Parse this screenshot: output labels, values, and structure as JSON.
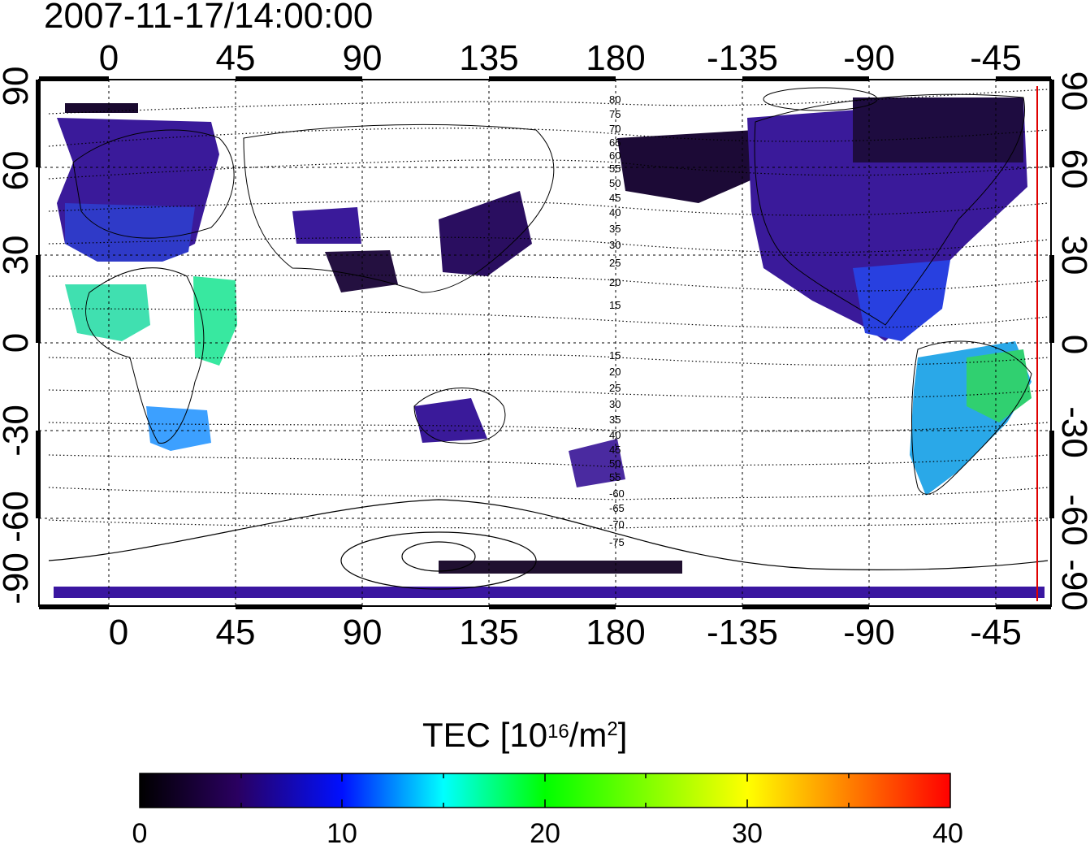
{
  "title": "2007-11-17/14:00:00",
  "map": {
    "x_ticks": [
      "0",
      "45",
      "90",
      "135",
      "180",
      "-135",
      "-90",
      "-45"
    ],
    "y_ticks": [
      "90",
      "60",
      "30",
      "0",
      "-30",
      "-60",
      "-90"
    ],
    "north_mlat_labels": [
      "80",
      "75",
      "70",
      "65",
      "60",
      "55",
      "50",
      "45",
      "40",
      "35",
      "30",
      "25",
      "20",
      "15"
    ],
    "south_mlat_labels": [
      "15",
      "20",
      "25",
      "30",
      "35",
      "40",
      "45",
      "50",
      "55",
      "-60",
      "-65",
      "-70",
      "-75"
    ],
    "terminator_color": "#e00000",
    "grid": "dotted"
  },
  "colorbar": {
    "title_prefix": "TEC  [10",
    "title_exp": "16",
    "title_mid": "/m",
    "title_exp2": "2",
    "title_suffix": "]",
    "ticks": [
      "0",
      "10",
      "20",
      "30",
      "40"
    ],
    "range": [
      0,
      40
    ],
    "colormap": [
      "#000000",
      "#2a0060",
      "#0010ff",
      "#00ffff",
      "#00ff00",
      "#ffff00",
      "#ff0000"
    ]
  }
}
